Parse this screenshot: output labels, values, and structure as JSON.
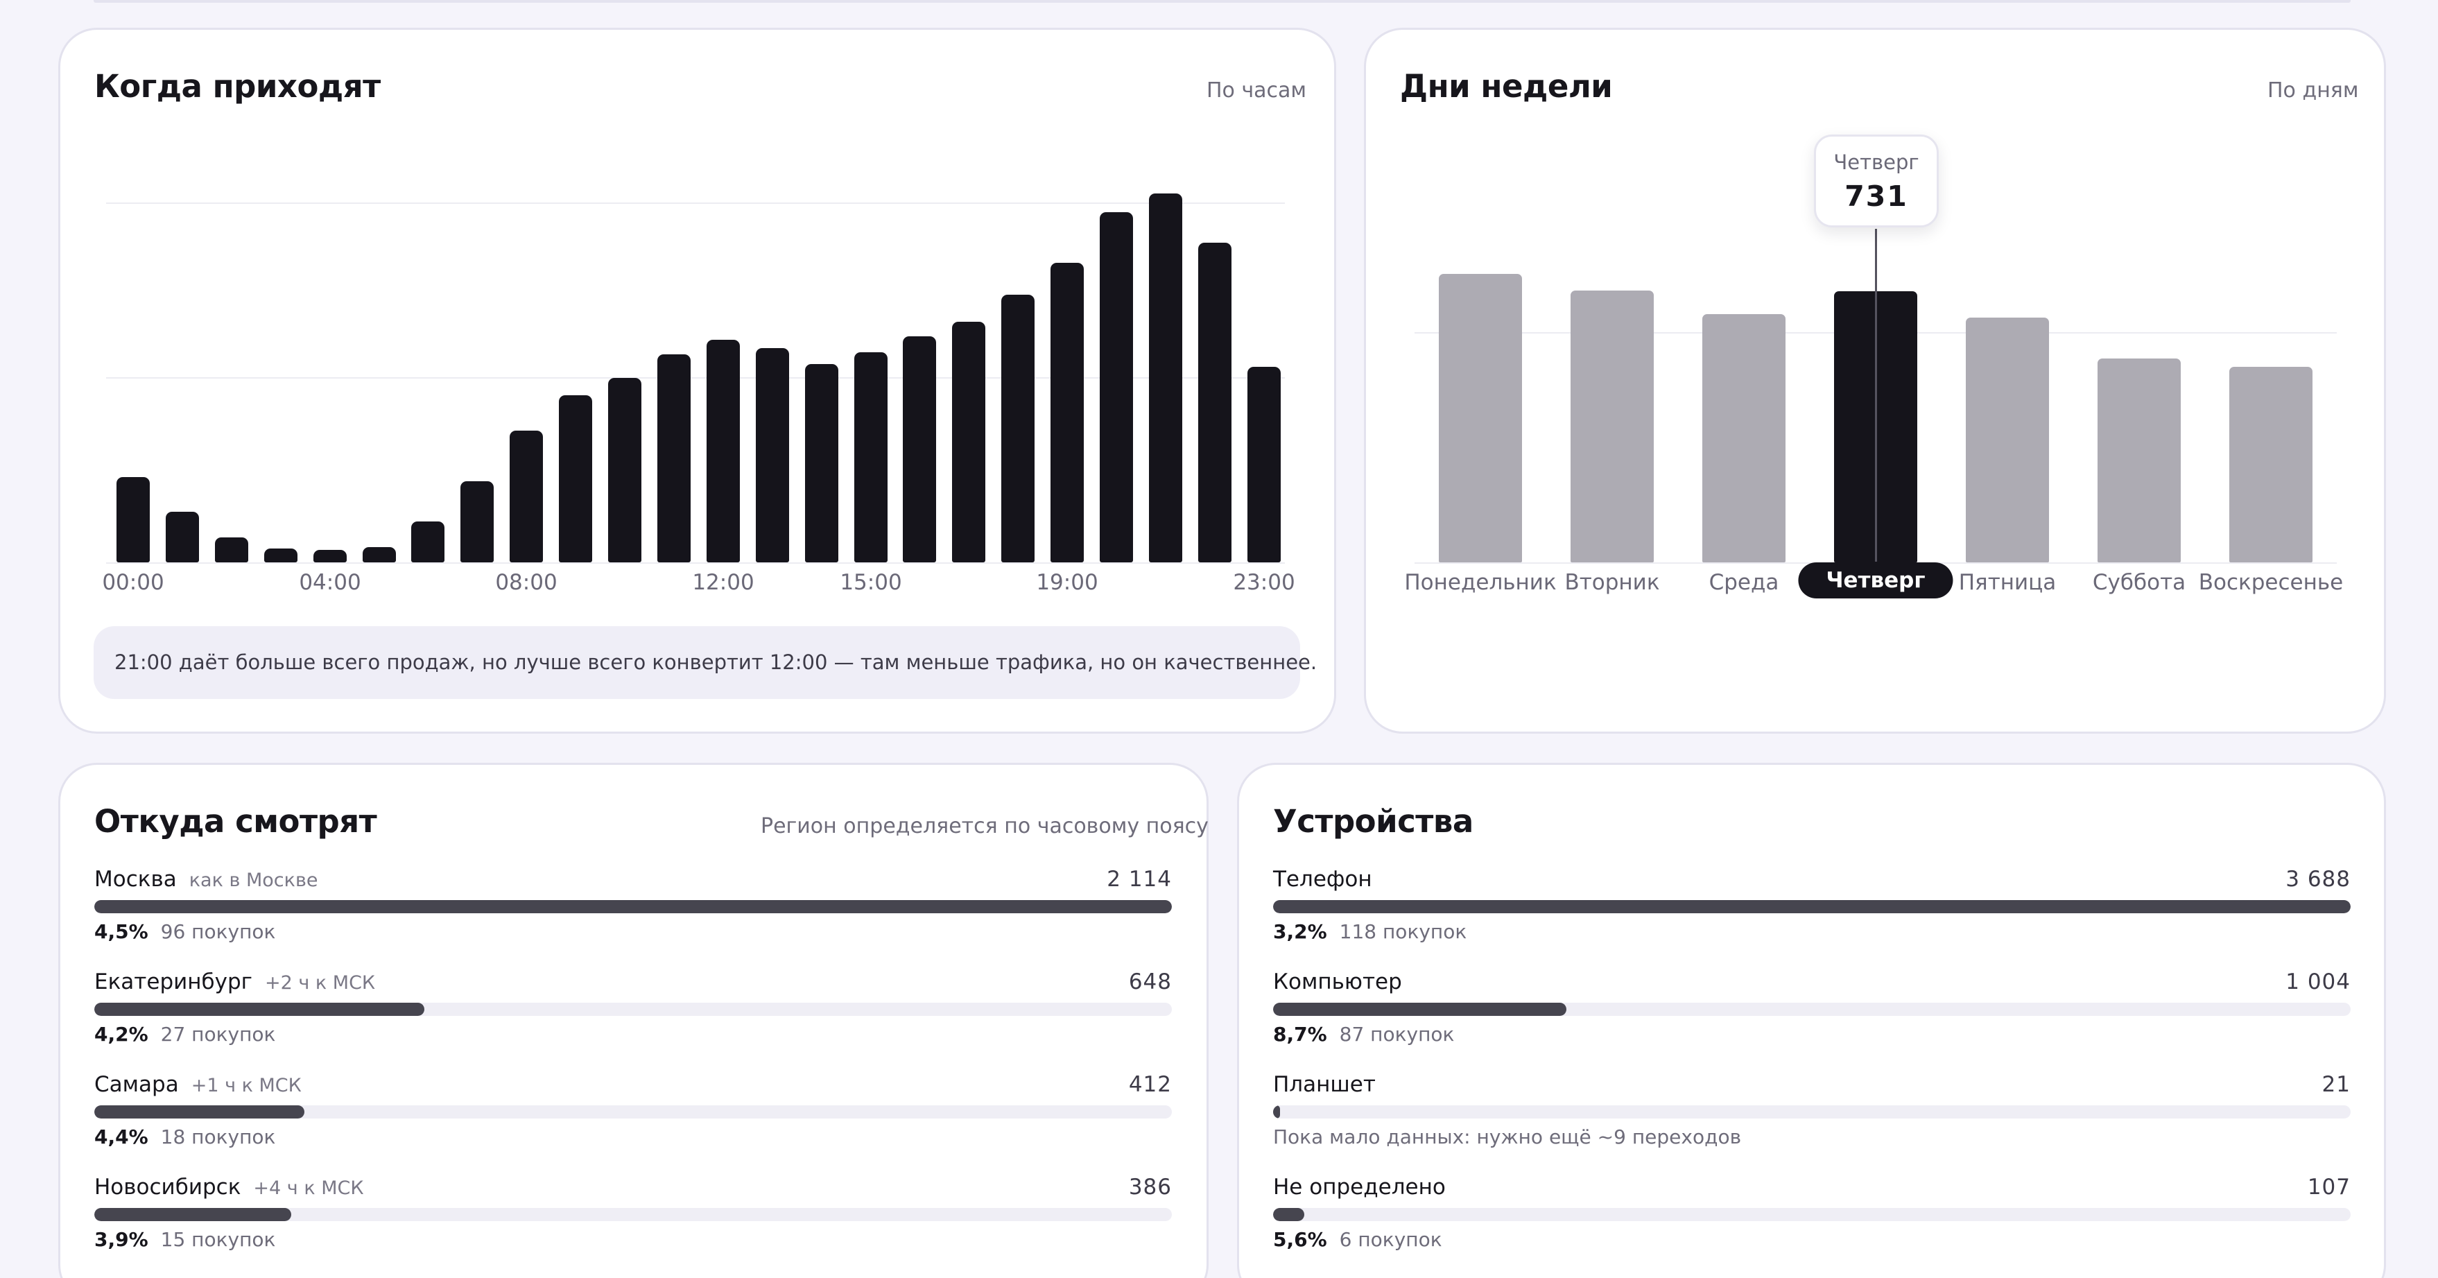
{
  "hourly": {
    "title": "Когда приходят",
    "hint": "По часам",
    "note": "21:00 даёт больше всего продаж, но лучше всего конвертит 12:00 — там меньше трафика, но он качественнее.",
    "chart_data": {
      "type": "bar",
      "categories": [
        "00:00",
        "01:00",
        "02:00",
        "03:00",
        "04:00",
        "05:00",
        "06:00",
        "07:00",
        "08:00",
        "09:00",
        "10:00",
        "11:00",
        "12:00",
        "13:00",
        "14:00",
        "15:00",
        "16:00",
        "17:00",
        "18:00",
        "19:00",
        "20:00",
        "21:00",
        "22:00",
        "23:00"
      ],
      "values": [
        230,
        137,
        68,
        38,
        27,
        42,
        111,
        218,
        356,
        450,
        497,
        560,
        600,
        578,
        535,
        567,
        610,
        648,
        721,
        808,
        943,
        994,
        861,
        527
      ],
      "tick_labels": [
        "00:00",
        "04:00",
        "08:00",
        "12:00",
        "15:00",
        "19:00",
        "23:00"
      ],
      "ylim": [
        0,
        1000
      ],
      "grid": true,
      "color": "#15141b"
    }
  },
  "weekdays": {
    "title": "Дни недели",
    "hint": "По дням",
    "tooltip": {
      "day": "Четверг",
      "value": "731"
    },
    "chart_data": {
      "type": "bar",
      "categories": [
        "Понедельник",
        "Вторник",
        "Среда",
        "Четверг",
        "Пятница",
        "Суббота",
        "Воскресенье"
      ],
      "values": [
        778,
        733,
        670,
        731,
        660,
        550,
        528
      ],
      "highlighted": "Четверг",
      "ylim": [
        0,
        1000
      ],
      "grid": true,
      "colors": {
        "bar": "#adabb3",
        "active": "#15141b"
      }
    }
  },
  "regions": {
    "title": "Откуда смотрят",
    "hint": "Регион определяется по часовому поясу",
    "rows": [
      {
        "name": "Москва",
        "tag": "как в Москве",
        "value": "2 114",
        "share": 1.0,
        "pct": "4,5%",
        "purchases": "96 покупок"
      },
      {
        "name": "Екатеринбург",
        "tag": "+2 ч к МСК",
        "value": "648",
        "share": 0.306,
        "pct": "4,2%",
        "purchases": "27 покупок"
      },
      {
        "name": "Самара",
        "tag": "+1 ч к МСК",
        "value": "412",
        "share": 0.195,
        "pct": "4,4%",
        "purchases": "18 покупок"
      },
      {
        "name": "Новосибирск",
        "tag": "+4 ч к МСК",
        "value": "386",
        "share": 0.183,
        "pct": "3,9%",
        "purchases": "15 покупок"
      }
    ]
  },
  "devices": {
    "title": "Устройства",
    "rows": [
      {
        "name": "Телефон",
        "value": "3 688",
        "share": 1.0,
        "pct": "3,2%",
        "purchases": "118 покупок"
      },
      {
        "name": "Компьютер",
        "value": "1 004",
        "share": 0.272,
        "pct": "8,7%",
        "purchases": "87 покупок"
      },
      {
        "name": "Планшет",
        "value": "21",
        "share": 0.006,
        "note": "Пока мало данных: нужно ещё ~9 переходов"
      },
      {
        "name": "Не определено",
        "value": "107",
        "share": 0.029,
        "pct": "5,6%",
        "purchases": "6 покупок"
      }
    ]
  }
}
